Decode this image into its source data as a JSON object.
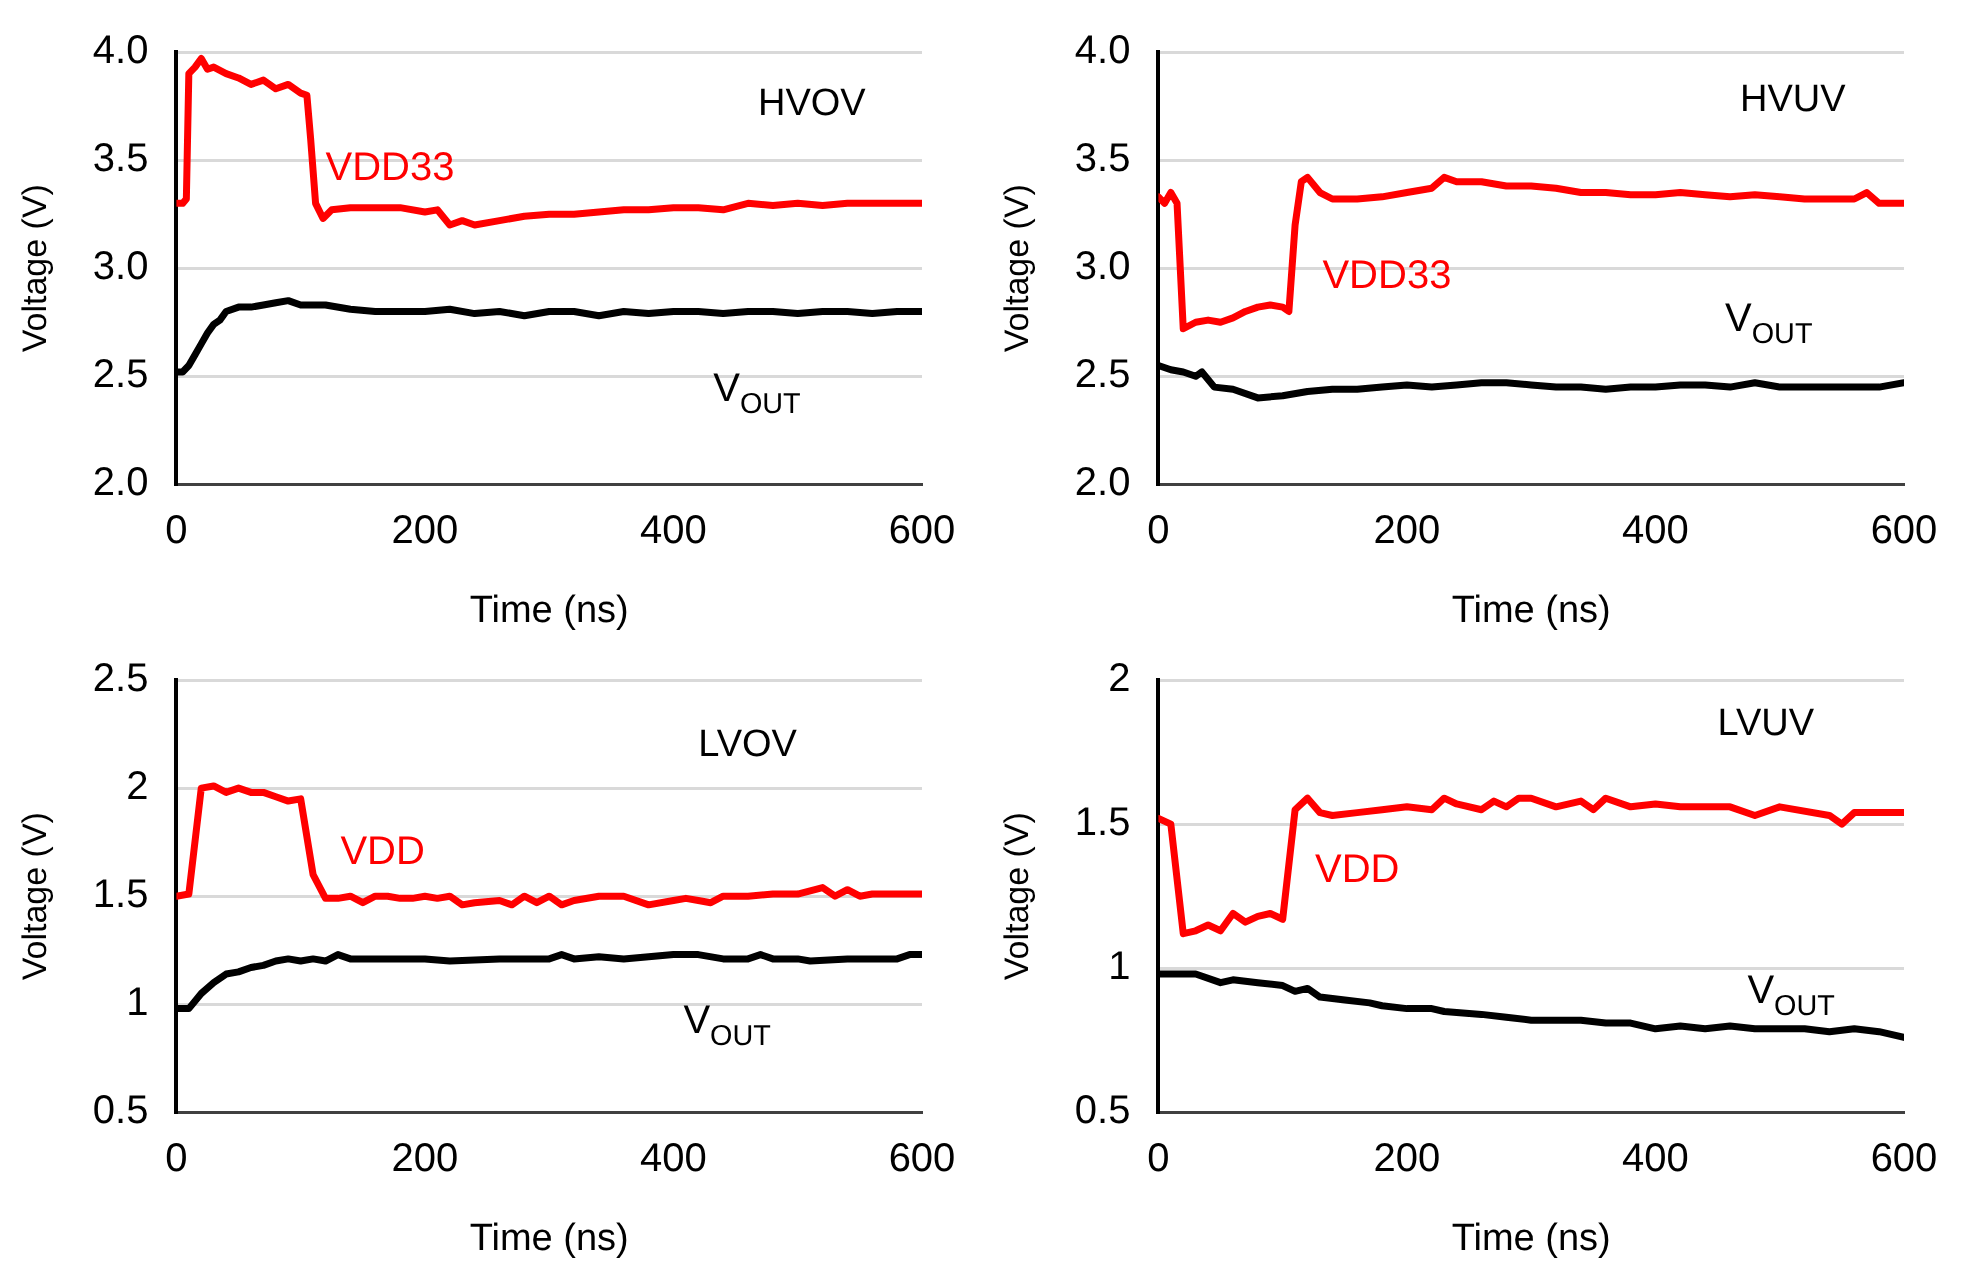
{
  "chart_data": [
    {
      "type": "line",
      "title": "HVOV",
      "xlabel": "Time (ns)",
      "ylabel": "Voltage (V)",
      "xlim": [
        0,
        600
      ],
      "xticks": [
        0,
        200,
        400,
        600
      ],
      "ylim": [
        2,
        4
      ],
      "yticks": [
        {
          "value": 2,
          "label": "2.0"
        },
        {
          "value": 2.5,
          "label": "2.5"
        },
        {
          "value": 3,
          "label": "3.0"
        },
        {
          "value": 3.5,
          "label": "3.5"
        },
        {
          "value": 4,
          "label": "4.0"
        }
      ],
      "grid": "y",
      "legend": false,
      "marker": "none",
      "line_style": "solid",
      "series": [
        {
          "name": "VDD33",
          "color": "#ff0000",
          "x": [
            0,
            5,
            8,
            10,
            15,
            20,
            25,
            30,
            40,
            50,
            60,
            70,
            80,
            90,
            100,
            105,
            108,
            112,
            118,
            125,
            140,
            160,
            180,
            200,
            210,
            220,
            230,
            240,
            260,
            280,
            300,
            320,
            340,
            360,
            380,
            400,
            420,
            440,
            460,
            480,
            500,
            520,
            540,
            560,
            580,
            600
          ],
          "values": [
            3.3,
            3.3,
            3.32,
            3.9,
            3.93,
            3.97,
            3.92,
            3.93,
            3.9,
            3.88,
            3.85,
            3.87,
            3.83,
            3.85,
            3.81,
            3.8,
            3.6,
            3.3,
            3.23,
            3.27,
            3.28,
            3.28,
            3.28,
            3.26,
            3.27,
            3.2,
            3.22,
            3.2,
            3.22,
            3.24,
            3.25,
            3.25,
            3.26,
            3.27,
            3.27,
            3.28,
            3.28,
            3.27,
            3.3,
            3.29,
            3.3,
            3.29,
            3.3,
            3.3,
            3.3,
            3.3
          ]
        },
        {
          "name": "V$_{OUT}$",
          "color": "#000000",
          "x": [
            0,
            5,
            10,
            15,
            20,
            25,
            30,
            35,
            40,
            50,
            60,
            70,
            80,
            90,
            100,
            120,
            140,
            160,
            180,
            200,
            220,
            240,
            260,
            280,
            300,
            320,
            340,
            360,
            380,
            400,
            420,
            440,
            460,
            480,
            500,
            520,
            540,
            560,
            580,
            600
          ],
          "values": [
            2.52,
            2.52,
            2.55,
            2.6,
            2.65,
            2.7,
            2.74,
            2.76,
            2.8,
            2.82,
            2.82,
            2.83,
            2.84,
            2.85,
            2.83,
            2.83,
            2.81,
            2.8,
            2.8,
            2.8,
            2.81,
            2.79,
            2.8,
            2.78,
            2.8,
            2.8,
            2.78,
            2.8,
            2.79,
            2.8,
            2.8,
            2.79,
            2.8,
            2.8,
            2.79,
            2.8,
            2.8,
            2.79,
            2.8,
            2.8
          ]
        }
      ]
    },
    {
      "type": "line",
      "title": "HVUV",
      "xlabel": "Time (ns)",
      "ylabel": "Voltage (V)",
      "xlim": [
        0,
        600
      ],
      "xticks": [
        0,
        200,
        400,
        600
      ],
      "ylim": [
        2,
        4
      ],
      "yticks": [
        {
          "value": 2,
          "label": "2.0"
        },
        {
          "value": 2.5,
          "label": "2.5"
        },
        {
          "value": 3,
          "label": "3.0"
        },
        {
          "value": 3.5,
          "label": "3.5"
        },
        {
          "value": 4,
          "label": "4.0"
        }
      ],
      "grid": "y",
      "legend": false,
      "marker": "none",
      "line_style": "solid",
      "series": [
        {
          "name": "VDD33",
          "color": "#ff0000",
          "x": [
            0,
            5,
            10,
            15,
            20,
            30,
            40,
            50,
            60,
            70,
            80,
            90,
            100,
            105,
            110,
            115,
            120,
            130,
            140,
            160,
            180,
            200,
            220,
            230,
            240,
            260,
            280,
            300,
            320,
            340,
            360,
            380,
            400,
            420,
            440,
            460,
            480,
            500,
            520,
            540,
            560,
            570,
            580,
            600
          ],
          "values": [
            3.33,
            3.3,
            3.35,
            3.3,
            2.72,
            2.75,
            2.76,
            2.75,
            2.77,
            2.8,
            2.82,
            2.83,
            2.82,
            2.8,
            3.2,
            3.4,
            3.42,
            3.35,
            3.32,
            3.32,
            3.33,
            3.35,
            3.37,
            3.42,
            3.4,
            3.4,
            3.38,
            3.38,
            3.37,
            3.35,
            3.35,
            3.34,
            3.34,
            3.35,
            3.34,
            3.33,
            3.34,
            3.33,
            3.32,
            3.32,
            3.32,
            3.35,
            3.3,
            3.3
          ]
        },
        {
          "name": "V$_{OUT}$",
          "color": "#000000",
          "x": [
            0,
            10,
            20,
            30,
            35,
            45,
            60,
            80,
            100,
            120,
            140,
            160,
            180,
            200,
            220,
            240,
            260,
            280,
            300,
            320,
            340,
            360,
            380,
            400,
            420,
            440,
            460,
            480,
            500,
            520,
            540,
            560,
            580,
            600
          ],
          "values": [
            2.55,
            2.53,
            2.52,
            2.5,
            2.52,
            2.45,
            2.44,
            2.4,
            2.41,
            2.43,
            2.44,
            2.44,
            2.45,
            2.46,
            2.45,
            2.46,
            2.47,
            2.47,
            2.46,
            2.45,
            2.45,
            2.44,
            2.45,
            2.45,
            2.46,
            2.46,
            2.45,
            2.47,
            2.45,
            2.45,
            2.45,
            2.45,
            2.45,
            2.47
          ]
        }
      ]
    },
    {
      "type": "line",
      "title": "LVOV",
      "xlabel": "Time (ns)",
      "ylabel": "Voltage (V)",
      "xlim": [
        0,
        600
      ],
      "xticks": [
        0,
        200,
        400,
        600
      ],
      "ylim": [
        0.5,
        2.5
      ],
      "yticks": [
        0.5,
        1,
        1.5,
        2,
        2.5
      ],
      "grid": "y",
      "legend": false,
      "marker": "none",
      "line_style": "solid",
      "series": [
        {
          "name": "VDD",
          "color": "#ff0000",
          "x": [
            0,
            10,
            20,
            30,
            40,
            50,
            60,
            70,
            80,
            90,
            100,
            110,
            120,
            130,
            140,
            150,
            160,
            170,
            180,
            190,
            200,
            210,
            220,
            230,
            240,
            260,
            270,
            280,
            290,
            300,
            310,
            320,
            340,
            360,
            380,
            400,
            410,
            420,
            430,
            440,
            460,
            480,
            500,
            520,
            530,
            540,
            550,
            560,
            580,
            600
          ],
          "values": [
            1.5,
            1.51,
            2.0,
            2.01,
            1.98,
            2.0,
            1.98,
            1.98,
            1.96,
            1.94,
            1.95,
            1.6,
            1.49,
            1.49,
            1.5,
            1.47,
            1.5,
            1.5,
            1.49,
            1.49,
            1.5,
            1.49,
            1.5,
            1.46,
            1.47,
            1.48,
            1.46,
            1.5,
            1.47,
            1.5,
            1.46,
            1.48,
            1.5,
            1.5,
            1.46,
            1.48,
            1.49,
            1.48,
            1.47,
            1.5,
            1.5,
            1.51,
            1.51,
            1.54,
            1.5,
            1.53,
            1.5,
            1.51,
            1.51,
            1.51
          ]
        },
        {
          "name": "V$_{OUT}$",
          "color": "#000000",
          "x": [
            0,
            10,
            20,
            30,
            40,
            50,
            60,
            70,
            80,
            90,
            100,
            110,
            120,
            130,
            140,
            160,
            200,
            220,
            260,
            300,
            310,
            320,
            340,
            360,
            380,
            400,
            420,
            440,
            460,
            470,
            480,
            500,
            510,
            540,
            580,
            590,
            600
          ],
          "values": [
            0.98,
            0.98,
            1.05,
            1.1,
            1.14,
            1.15,
            1.17,
            1.18,
            1.2,
            1.21,
            1.2,
            1.21,
            1.2,
            1.23,
            1.21,
            1.21,
            1.21,
            1.2,
            1.21,
            1.21,
            1.23,
            1.21,
            1.22,
            1.21,
            1.22,
            1.23,
            1.23,
            1.21,
            1.21,
            1.23,
            1.21,
            1.21,
            1.2,
            1.21,
            1.21,
            1.23,
            1.23
          ]
        }
      ]
    },
    {
      "type": "line",
      "title": "LVUV",
      "xlabel": "Time (ns)",
      "ylabel": "Voltage (V)",
      "xlim": [
        0,
        600
      ],
      "xticks": [
        0,
        200,
        400,
        600
      ],
      "ylim": [
        0.5,
        2
      ],
      "yticks": [
        0.5,
        1,
        1.5,
        2
      ],
      "grid": "y",
      "legend": false,
      "marker": "none",
      "line_style": "solid",
      "series": [
        {
          "name": "VDD",
          "color": "#ff0000",
          "x": [
            0,
            10,
            20,
            30,
            40,
            50,
            60,
            70,
            80,
            90,
            100,
            110,
            120,
            130,
            140,
            160,
            180,
            200,
            220,
            230,
            240,
            260,
            270,
            280,
            290,
            300,
            320,
            340,
            350,
            360,
            380,
            400,
            420,
            460,
            480,
            500,
            540,
            550,
            560,
            600
          ],
          "values": [
            1.52,
            1.5,
            1.12,
            1.13,
            1.15,
            1.13,
            1.19,
            1.16,
            1.18,
            1.19,
            1.17,
            1.55,
            1.59,
            1.54,
            1.53,
            1.54,
            1.55,
            1.56,
            1.55,
            1.59,
            1.57,
            1.55,
            1.58,
            1.56,
            1.59,
            1.59,
            1.56,
            1.58,
            1.55,
            1.59,
            1.56,
            1.57,
            1.56,
            1.56,
            1.53,
            1.56,
            1.53,
            1.5,
            1.54,
            1.54
          ]
        },
        {
          "name": "V$_{OUT}$",
          "color": "#000000",
          "x": [
            0,
            20,
            30,
            50,
            60,
            80,
            100,
            110,
            120,
            130,
            150,
            170,
            180,
            200,
            220,
            230,
            260,
            280,
            300,
            340,
            360,
            380,
            400,
            420,
            440,
            460,
            480,
            500,
            520,
            540,
            560,
            580,
            600
          ],
          "values": [
            0.98,
            0.98,
            0.98,
            0.95,
            0.96,
            0.95,
            0.94,
            0.92,
            0.93,
            0.9,
            0.89,
            0.88,
            0.87,
            0.86,
            0.86,
            0.85,
            0.84,
            0.83,
            0.82,
            0.82,
            0.81,
            0.81,
            0.79,
            0.8,
            0.79,
            0.8,
            0.79,
            0.79,
            0.79,
            0.78,
            0.79,
            0.78,
            0.76
          ]
        }
      ]
    }
  ]
}
